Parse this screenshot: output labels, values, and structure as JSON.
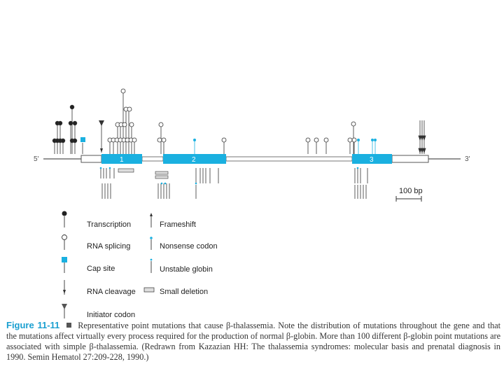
{
  "colors": {
    "accent": "#1ab0e0",
    "ink": "#222222",
    "caption_label": "#1a9fd0"
  },
  "gene": {
    "five_prime": "5'",
    "three_prime": "3'",
    "exons": [
      "1",
      "2",
      "3"
    ],
    "scale_label": "100 bp"
  },
  "legend": {
    "transcription": "Transcription",
    "rna_splicing": "RNA splicing",
    "cap_site": "Cap site",
    "rna_cleavage": "RNA cleavage",
    "initiator_codon": "Initiator codon",
    "frameshift": "Frameshift",
    "nonsense_codon": "Nonsense codon",
    "unstable_globin": "Unstable globin",
    "small_deletion": "Small deletion"
  },
  "caption": {
    "label": "Figure 11-11",
    "text": "Representative point mutations that cause β-thalassemia. Note the distribution of mutations throughout the gene and that the mutations affect virtually every process required for the production of normal β-globin. More than 100 different β-globin point mutations are associated with simple β-thalassemia. (Redrawn from Kazazian HH: The thalassemia syndromes: molecular basis and prenatal diagnosis in 1990. Semin Hematol 27:209-228, 1990.)"
  }
}
